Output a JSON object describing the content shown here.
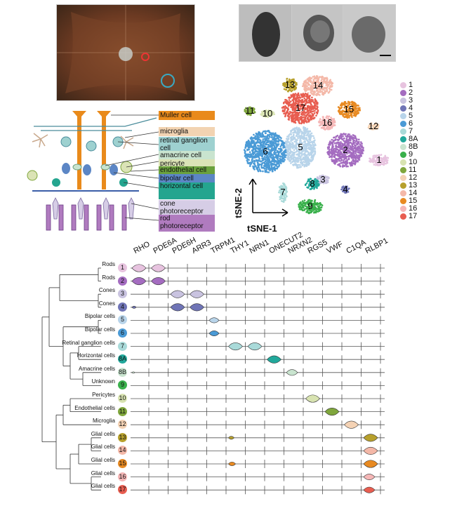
{
  "cell_labels": [
    {
      "text": "Muller cell",
      "color": "#e98a1b"
    },
    {
      "text": "microglia",
      "color": "#f2d3b2"
    },
    {
      "text": "retinal ganglion cell",
      "color": "#9ed1d0"
    },
    {
      "text": "amacrine cell",
      "color": "#c9e4cf"
    },
    {
      "text": "pericyte",
      "color": "#dbe3b6"
    },
    {
      "text": "endothelial cell",
      "color": "#6aa13d"
    },
    {
      "text": "bipolar cell",
      "color": "#5c86c5"
    },
    {
      "text": "horizontal cell",
      "color": "#24a58f"
    },
    {
      "text": "cone photoreceptor",
      "color": "#d6cde6"
    },
    {
      "text": "rod photoreceptor",
      "color": "#b07bbf"
    }
  ],
  "tsne": {
    "axis_x": "tSNE-1",
    "axis_y": "tSNE-2",
    "clusters": [
      {
        "label": "1",
        "color": "#e7c3df",
        "x": 540,
        "y": 228
      },
      {
        "label": "2",
        "color": "#a46cc0",
        "x": 492,
        "y": 214
      },
      {
        "label": "3",
        "color": "#c9c3e0",
        "x": 460,
        "y": 256
      },
      {
        "label": "4",
        "color": "#6f74b6",
        "x": 492,
        "y": 270
      },
      {
        "label": "5",
        "color": "#b8d4ea",
        "x": 428,
        "y": 210
      },
      {
        "label": "6",
        "color": "#4a9ad6",
        "x": 378,
        "y": 216
      },
      {
        "label": "7",
        "color": "#a9dad9",
        "x": 403,
        "y": 274
      },
      {
        "label": "8",
        "color": "#21a89b",
        "x": 445,
        "y": 262
      },
      {
        "label": "9",
        "color": "#39b04b",
        "x": 442,
        "y": 294
      },
      {
        "label": "10",
        "color": "#d8e3b1",
        "x": 381,
        "y": 162
      },
      {
        "label": "11",
        "color": "#7fa63c",
        "x": 356,
        "y": 158
      },
      {
        "label": "12",
        "color": "#f4d2b4",
        "x": 532,
        "y": 180
      },
      {
        "label": "13",
        "color": "#b7a02c",
        "x": 413,
        "y": 121
      },
      {
        "label": "14",
        "color": "#f4b8a8",
        "x": 453,
        "y": 122
      },
      {
        "label": "15",
        "color": "#e88a22",
        "x": 497,
        "y": 156
      },
      {
        "label": "16",
        "color": "#f5b7b7",
        "x": 466,
        "y": 175
      },
      {
        "label": "17",
        "color": "#e85d50",
        "x": 428,
        "y": 154
      }
    ],
    "legend": [
      {
        "label": "1",
        "color": "#e7c3df"
      },
      {
        "label": "2",
        "color": "#a46cc0"
      },
      {
        "label": "3",
        "color": "#c9c3e0"
      },
      {
        "label": "4",
        "color": "#6f74b6"
      },
      {
        "label": "5",
        "color": "#b8d4ea"
      },
      {
        "label": "6",
        "color": "#4a9ad6"
      },
      {
        "label": "7",
        "color": "#a9dad9"
      },
      {
        "label": "8A",
        "color": "#21a89b"
      },
      {
        "label": "8B",
        "color": "#c9e4cf"
      },
      {
        "label": "9",
        "color": "#39b04b"
      },
      {
        "label": "10",
        "color": "#d8e3b1"
      },
      {
        "label": "11",
        "color": "#7fa63c"
      },
      {
        "label": "12",
        "color": "#f4d2b4"
      },
      {
        "label": "13",
        "color": "#b7a02c"
      },
      {
        "label": "14",
        "color": "#f4b8a8"
      },
      {
        "label": "15",
        "color": "#e88a22"
      },
      {
        "label": "16",
        "color": "#f5b7b7"
      },
      {
        "label": "17",
        "color": "#e85d50"
      }
    ]
  },
  "violin": {
    "genes": [
      "RHO",
      "PDE6A",
      "PDE6H",
      "ARR3",
      "TRPM1",
      "THY1",
      "NRN1",
      "ONECUT2",
      "NRXN2",
      "RGS5",
      "VWF",
      "C1QA",
      "RLBP1"
    ],
    "rows": [
      {
        "name": "Rods",
        "id": "1",
        "color": "#e7c3df",
        "expr": {
          "0": 1,
          "1": 1
        }
      },
      {
        "name": "Rods",
        "id": "2",
        "color": "#a46cc0",
        "expr": {
          "0": 1,
          "1": 1
        }
      },
      {
        "name": "Cones",
        "id": "3",
        "color": "#c9c3e0",
        "expr": {
          "2": 1,
          "3": 1
        }
      },
      {
        "name": "Cones",
        "id": "4",
        "color": "#6f74b6",
        "expr": {
          "0": 0.3,
          "2": 1,
          "3": 1
        }
      },
      {
        "name": "Bipolar cells",
        "id": "5",
        "color": "#b8d4ea",
        "expr": {
          "4": 0.7
        }
      },
      {
        "name": "Bipolar cells",
        "id": "6",
        "color": "#4a9ad6",
        "expr": {
          "4": 0.7
        }
      },
      {
        "name": "Retinal ganglion cells",
        "id": "7",
        "color": "#a9dad9",
        "expr": {
          "5": 1,
          "6": 1
        }
      },
      {
        "name": "Horizontal cells",
        "id": "8A",
        "color": "#21a89b",
        "expr": {
          "7": 1
        }
      },
      {
        "name": "Amacrine cells",
        "id": "8B",
        "color": "#c9e4cf",
        "expr": {
          "0": 0.2,
          "8": 0.8
        }
      },
      {
        "name": "Unknown",
        "id": "9",
        "color": "#39b04b",
        "expr": {}
      },
      {
        "name": "Pericytes",
        "id": "10",
        "color": "#d8e3b1",
        "expr": {
          "9": 1
        }
      },
      {
        "name": "Endothelial cells",
        "id": "11",
        "color": "#7fa63c",
        "expr": {
          "10": 1
        }
      },
      {
        "name": "Microglia",
        "id": "12",
        "color": "#f4d2b4",
        "expr": {
          "11": 1
        }
      },
      {
        "name": "Glial cells",
        "id": "13",
        "color": "#b7a02c",
        "expr": {
          "5": 0.4,
          "12": 1
        }
      },
      {
        "name": "Glial cells",
        "id": "14",
        "color": "#f4b8a8",
        "expr": {
          "12": 1
        }
      },
      {
        "name": "Glial cells",
        "id": "15",
        "color": "#e88a22",
        "expr": {
          "5": 0.5,
          "12": 1
        }
      },
      {
        "name": "Glial cells",
        "id": "16",
        "color": "#f5b7b7",
        "expr": {
          "12": 0.8
        }
      },
      {
        "name": "Glial cells",
        "id": "17",
        "color": "#e85d50",
        "expr": {
          "12": 0.8
        }
      }
    ]
  }
}
